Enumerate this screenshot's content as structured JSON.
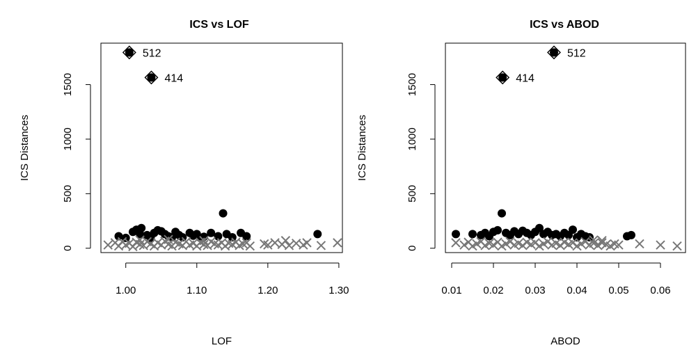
{
  "chart_data": [
    {
      "type": "scatter",
      "title": "ICS vs LOF",
      "xlabel": "LOF",
      "ylabel": "ICS Distances",
      "xlim": [
        0.965,
        1.305
      ],
      "ylim": [
        -40,
        1880
      ],
      "xticks": [
        "1.00",
        "1.10",
        "1.20",
        "1.30"
      ],
      "yticks": [
        "0",
        "500",
        "1000",
        "1500"
      ],
      "grid": false,
      "outliers": [
        {
          "label": "512",
          "x": 1.005,
          "y": 1795
        },
        {
          "label": "414",
          "x": 1.036,
          "y": 1565
        }
      ],
      "series": [
        {
          "marker": "filled-circle",
          "points": [
            [
              0.99,
              110
            ],
            [
              1.0,
              95
            ],
            [
              1.01,
              150
            ],
            [
              1.015,
              170
            ],
            [
              1.02,
              130
            ],
            [
              1.022,
              185
            ],
            [
              1.03,
              120
            ],
            [
              1.04,
              140
            ],
            [
              1.045,
              165
            ],
            [
              1.05,
              155
            ],
            [
              1.055,
              130
            ],
            [
              1.06,
              110
            ],
            [
              1.07,
              150
            ],
            [
              1.075,
              120
            ],
            [
              1.08,
              100
            ],
            [
              1.09,
              140
            ],
            [
              1.095,
              115
            ],
            [
              1.1,
              130
            ],
            [
              1.11,
              105
            ],
            [
              1.12,
              140
            ],
            [
              1.13,
              110
            ],
            [
              1.137,
              320
            ],
            [
              1.142,
              130
            ],
            [
              1.15,
              100
            ],
            [
              1.162,
              140
            ],
            [
              1.17,
              110
            ],
            [
              1.27,
              130
            ],
            [
              1.035,
              95
            ],
            [
              1.065,
              100
            ],
            [
              1.105,
              95
            ]
          ]
        },
        {
          "marker": "cross",
          "points": [
            [
              0.975,
              30
            ],
            [
              0.985,
              50
            ],
            [
              0.99,
              20
            ],
            [
              0.995,
              60
            ],
            [
              1.0,
              30
            ],
            [
              1.005,
              45
            ],
            [
              1.01,
              15
            ],
            [
              1.015,
              55
            ],
            [
              1.02,
              35
            ],
            [
              1.025,
              25
            ],
            [
              1.03,
              60
            ],
            [
              1.035,
              40
            ],
            [
              1.04,
              20
            ],
            [
              1.045,
              50
            ],
            [
              1.05,
              30
            ],
            [
              1.055,
              65
            ],
            [
              1.06,
              35
            ],
            [
              1.065,
              20
            ],
            [
              1.07,
              55
            ],
            [
              1.075,
              40
            ],
            [
              1.08,
              25
            ],
            [
              1.085,
              60
            ],
            [
              1.09,
              30
            ],
            [
              1.095,
              45
            ],
            [
              1.1,
              20
            ],
            [
              1.105,
              55
            ],
            [
              1.11,
              35
            ],
            [
              1.115,
              25
            ],
            [
              1.12,
              60
            ],
            [
              1.125,
              40
            ],
            [
              1.13,
              30
            ],
            [
              1.135,
              50
            ],
            [
              1.14,
              20
            ],
            [
              1.145,
              45
            ],
            [
              1.15,
              35
            ],
            [
              1.155,
              55
            ],
            [
              1.16,
              25
            ],
            [
              1.165,
              40
            ],
            [
              1.17,
              50
            ],
            [
              1.175,
              20
            ],
            [
              1.195,
              40
            ],
            [
              1.2,
              30
            ],
            [
              1.21,
              50
            ],
            [
              1.22,
              35
            ],
            [
              1.225,
              70
            ],
            [
              1.23,
              25
            ],
            [
              1.24,
              45
            ],
            [
              1.25,
              30
            ],
            [
              1.255,
              50
            ],
            [
              1.275,
              25
            ],
            [
              1.298,
              50
            ],
            [
              1.02,
              75
            ],
            [
              1.06,
              80
            ],
            [
              1.11,
              70
            ]
          ]
        }
      ]
    },
    {
      "type": "scatter",
      "title": "ICS vs ABOD",
      "xlabel": "ABOD",
      "ylabel": "ICS Distances",
      "xlim": [
        0.0085,
        0.066
      ],
      "ylim": [
        -40,
        1880
      ],
      "xticks": [
        "0.01",
        "0.02",
        "0.03",
        "0.04",
        "0.05",
        "0.06"
      ],
      "yticks": [
        "0",
        "500",
        "1000",
        "1500"
      ],
      "grid": false,
      "outliers": [
        {
          "label": "512",
          "x": 0.0345,
          "y": 1795
        },
        {
          "label": "414",
          "x": 0.0222,
          "y": 1565
        }
      ],
      "series": [
        {
          "marker": "filled-circle",
          "points": [
            [
              0.011,
              130
            ],
            [
              0.015,
              130
            ],
            [
              0.017,
              120
            ],
            [
              0.018,
              140
            ],
            [
              0.019,
              110
            ],
            [
              0.02,
              150
            ],
            [
              0.021,
              165
            ],
            [
              0.022,
              320
            ],
            [
              0.023,
              140
            ],
            [
              0.024,
              120
            ],
            [
              0.025,
              155
            ],
            [
              0.026,
              130
            ],
            [
              0.027,
              160
            ],
            [
              0.028,
              140
            ],
            [
              0.029,
              120
            ],
            [
              0.03,
              150
            ],
            [
              0.031,
              185
            ],
            [
              0.032,
              130
            ],
            [
              0.033,
              150
            ],
            [
              0.034,
              120
            ],
            [
              0.035,
              130
            ],
            [
              0.036,
              110
            ],
            [
              0.037,
              140
            ],
            [
              0.038,
              120
            ],
            [
              0.039,
              170
            ],
            [
              0.04,
              100
            ],
            [
              0.041,
              130
            ],
            [
              0.042,
              110
            ],
            [
              0.043,
              100
            ],
            [
              0.052,
              110
            ],
            [
              0.053,
              120
            ]
          ]
        },
        {
          "marker": "cross",
          "points": [
            [
              0.011,
              50
            ],
            [
              0.013,
              30
            ],
            [
              0.014,
              55
            ],
            [
              0.015,
              20
            ],
            [
              0.016,
              40
            ],
            [
              0.017,
              60
            ],
            [
              0.018,
              25
            ],
            [
              0.019,
              45
            ],
            [
              0.02,
              30
            ],
            [
              0.021,
              55
            ],
            [
              0.022,
              20
            ],
            [
              0.023,
              40
            ],
            [
              0.024,
              60
            ],
            [
              0.025,
              30
            ],
            [
              0.026,
              45
            ],
            [
              0.027,
              25
            ],
            [
              0.028,
              55
            ],
            [
              0.029,
              35
            ],
            [
              0.03,
              50
            ],
            [
              0.031,
              20
            ],
            [
              0.032,
              40
            ],
            [
              0.033,
              60
            ],
            [
              0.034,
              30
            ],
            [
              0.035,
              45
            ],
            [
              0.036,
              25
            ],
            [
              0.037,
              55
            ],
            [
              0.038,
              35
            ],
            [
              0.039,
              50
            ],
            [
              0.04,
              20
            ],
            [
              0.041,
              40
            ],
            [
              0.042,
              60
            ],
            [
              0.043,
              30
            ],
            [
              0.044,
              45
            ],
            [
              0.045,
              25
            ],
            [
              0.046,
              50
            ],
            [
              0.047,
              35
            ],
            [
              0.048,
              20
            ],
            [
              0.049,
              40
            ],
            [
              0.05,
              30
            ],
            [
              0.055,
              40
            ],
            [
              0.06,
              30
            ],
            [
              0.064,
              20
            ],
            [
              0.046,
              70
            ],
            [
              0.044,
              75
            ]
          ]
        }
      ]
    }
  ]
}
